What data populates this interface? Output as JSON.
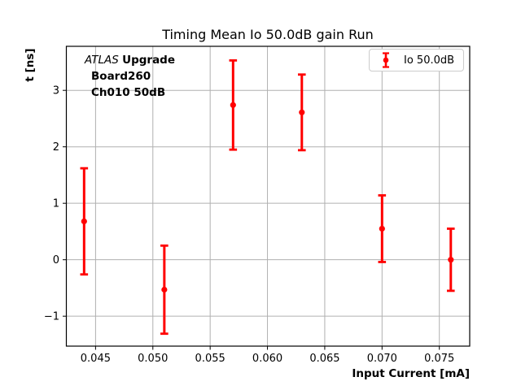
{
  "chart_data": {
    "type": "scatter",
    "title": "Timing Mean Io 50.0dB gain Run",
    "xlabel": "Input Current [mA]",
    "ylabel": "t [ns]",
    "xlim": [
      0.04245,
      0.07765
    ],
    "ylim": [
      -1.53,
      3.78
    ],
    "xticks": [
      0.045,
      0.05,
      0.055,
      0.06,
      0.065,
      0.07,
      0.075
    ],
    "xtick_labels": [
      "0.045",
      "0.050",
      "0.055",
      "0.060",
      "0.065",
      "0.070",
      "0.075"
    ],
    "yticks": [
      -1,
      0,
      1,
      2,
      3
    ],
    "ytick_labels": [
      "−1",
      "0",
      "1",
      "2",
      "3"
    ],
    "grid": true,
    "legend_position": "top-right",
    "series": [
      {
        "name": "Io 50.0dB",
        "color": "#ff0000",
        "marker": "circle",
        "x": [
          0.044,
          0.051,
          0.057,
          0.063,
          0.07,
          0.076
        ],
        "y": [
          0.68,
          -0.53,
          2.74,
          2.61,
          0.55,
          0.0
        ],
        "yerr": [
          0.94,
          0.78,
          0.79,
          0.67,
          0.59,
          0.55
        ]
      }
    ],
    "annotation": {
      "line1_italic": "ATLAS",
      "line1_bold": "Upgrade",
      "line2": "Board260",
      "line3": "Ch010 50dB"
    },
    "colors": {
      "grid": "#b0b0b0",
      "axis": "#000000",
      "series": "#ff0000",
      "legend_border": "#cccccc",
      "background": "#ffffff"
    }
  }
}
